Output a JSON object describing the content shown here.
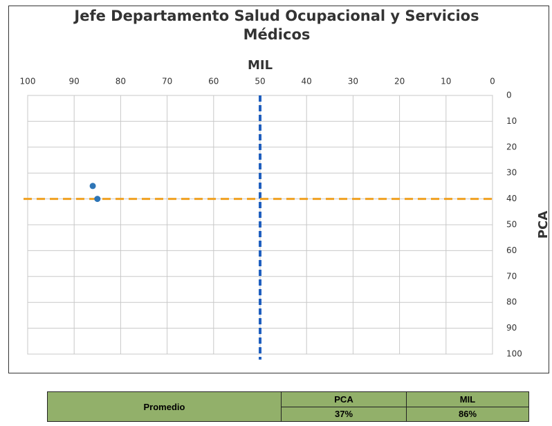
{
  "chart_data": {
    "type": "scatter",
    "title": "Jefe Departamento Salud Ocupacional y Servicios Médicos",
    "x_label": "MIL",
    "y_label": "PCA",
    "xlim": [
      100,
      0
    ],
    "xticks": [
      100,
      90,
      80,
      70,
      60,
      50,
      40,
      30,
      20,
      10,
      0
    ],
    "ylim": [
      100,
      0
    ],
    "yticks": [
      0,
      10,
      20,
      30,
      40,
      50,
      60,
      70,
      80,
      90,
      100
    ],
    "grid": true,
    "series": [
      {
        "color": "#2e75b6",
        "x": [
          86,
          85
        ],
        "values": [
          35,
          40
        ]
      }
    ],
    "reference_lines": {
      "x": 50,
      "x_color": "#1f5fbf",
      "y": 40,
      "y_color": "#f0a020"
    }
  },
  "table": {
    "row_label": "Promedio",
    "columns": [
      "PCA",
      "MIL"
    ],
    "values": [
      "37%",
      "86%"
    ]
  }
}
